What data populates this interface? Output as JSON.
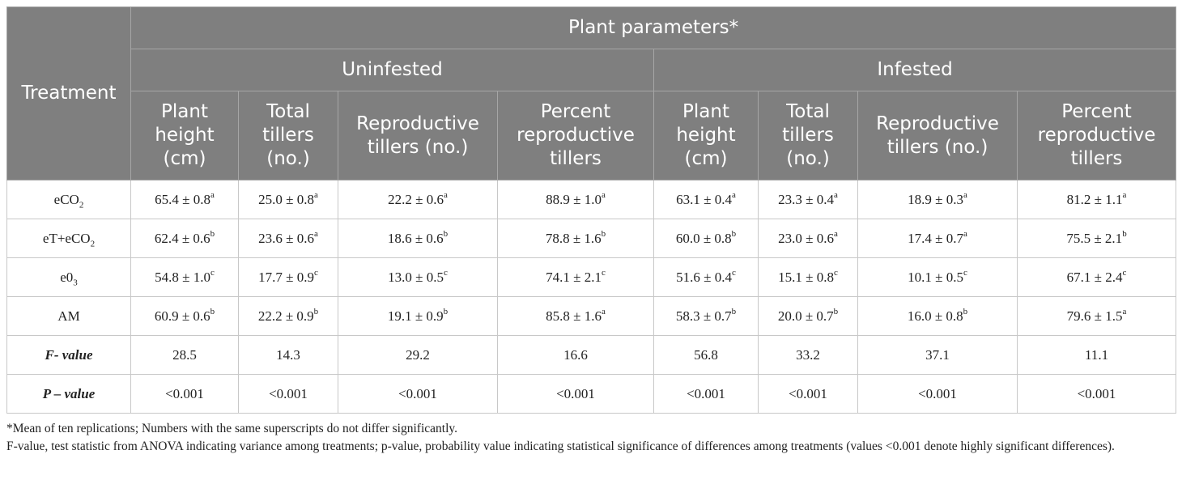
{
  "header": {
    "treatment": "Treatment",
    "plant_parameters": "Plant parameters*",
    "groups": [
      "Uninfested",
      "Infested"
    ],
    "columns": [
      [
        "Plant",
        "height",
        "(cm)"
      ],
      [
        "Total",
        "tillers",
        "(no.)"
      ],
      [
        "Reproductive",
        "tillers (no.)"
      ],
      [
        "Percent",
        "reproductive",
        "tillers"
      ],
      [
        "Plant",
        "height",
        "(cm)"
      ],
      [
        "Total",
        "tillers",
        "(no.)"
      ],
      [
        "Reproductive",
        "tillers (no.)"
      ],
      [
        "Percent",
        "reproductive",
        "tillers"
      ]
    ]
  },
  "rows": [
    {
      "label": [
        "eCO",
        "2",
        "",
        ""
      ],
      "cells": [
        {
          "v": "65.4 ± 0.8",
          "s": "a"
        },
        {
          "v": "25.0 ± 0.8",
          "s": "a"
        },
        {
          "v": "22.2 ± 0.6",
          "s": "a"
        },
        {
          "v": "88.9 ± 1.0",
          "s": "a"
        },
        {
          "v": "63.1 ± 0.4",
          "s": "a"
        },
        {
          "v": "23.3 ± 0.4",
          "s": "a"
        },
        {
          "v": "18.9 ± 0.3",
          "s": "a"
        },
        {
          "v": "81.2 ± 1.1",
          "s": "a"
        }
      ]
    },
    {
      "label": [
        "eT+eCO",
        "2",
        "",
        ""
      ],
      "cells": [
        {
          "v": "62.4 ± 0.6",
          "s": "b"
        },
        {
          "v": "23.6 ± 0.6",
          "s": "a"
        },
        {
          "v": "18.6 ± 0.6",
          "s": "b"
        },
        {
          "v": "78.8 ± 1.6",
          "s": "b"
        },
        {
          "v": "60.0 ± 0.8",
          "s": "b"
        },
        {
          "v": "23.0 ± 0.6",
          "s": "a"
        },
        {
          "v": "17.4 ± 0.7",
          "s": "a"
        },
        {
          "v": "75.5 ± 2.1",
          "s": "b"
        }
      ]
    },
    {
      "label": [
        "e0",
        "3",
        "",
        ""
      ],
      "cells": [
        {
          "v": "54.8 ± 1.0",
          "s": "c"
        },
        {
          "v": "17.7 ± 0.9",
          "s": "c"
        },
        {
          "v": "13.0 ± 0.5",
          "s": "c"
        },
        {
          "v": "74.1 ± 2.1",
          "s": "c"
        },
        {
          "v": "51.6 ± 0.4",
          "s": "c"
        },
        {
          "v": "15.1 ± 0.8",
          "s": "c"
        },
        {
          "v": "10.1 ± 0.5",
          "s": "c"
        },
        {
          "v": "67.1 ± 2.4",
          "s": "c"
        }
      ]
    },
    {
      "label": [
        "AM",
        "",
        "",
        ""
      ],
      "cells": [
        {
          "v": "60.9 ± 0.6",
          "s": "b"
        },
        {
          "v": "22.2 ± 0.9",
          "s": "b"
        },
        {
          "v": "19.1 ± 0.9",
          "s": "b"
        },
        {
          "v": "85.8 ± 1.6",
          "s": "a"
        },
        {
          "v": "58.3 ± 0.7",
          "s": "b"
        },
        {
          "v": "20.0 ± 0.7",
          "s": "b"
        },
        {
          "v": "16.0 ± 0.8",
          "s": "b"
        },
        {
          "v": "79.6 ± 1.5",
          "s": "a"
        }
      ]
    }
  ],
  "stats": [
    {
      "label": "F- value",
      "values": [
        "28.5",
        "14.3",
        "29.2",
        "16.6",
        "56.8",
        "33.2",
        "37.1",
        "11.1"
      ]
    },
    {
      "label": "P – value",
      "values": [
        "<0.001",
        "<0.001",
        "<0.001",
        "<0.001",
        "<0.001",
        "<0.001",
        "<0.001",
        "<0.001"
      ]
    }
  ],
  "notes": [
    "*Mean of ten replications; Numbers with the same superscripts do not differ significantly.",
    "F-value, test statistic from ANOVA indicating variance among treatments; p-value, probability value indicating statistical significance of differences among treatments (values <0.001 denote highly significant differences)."
  ]
}
